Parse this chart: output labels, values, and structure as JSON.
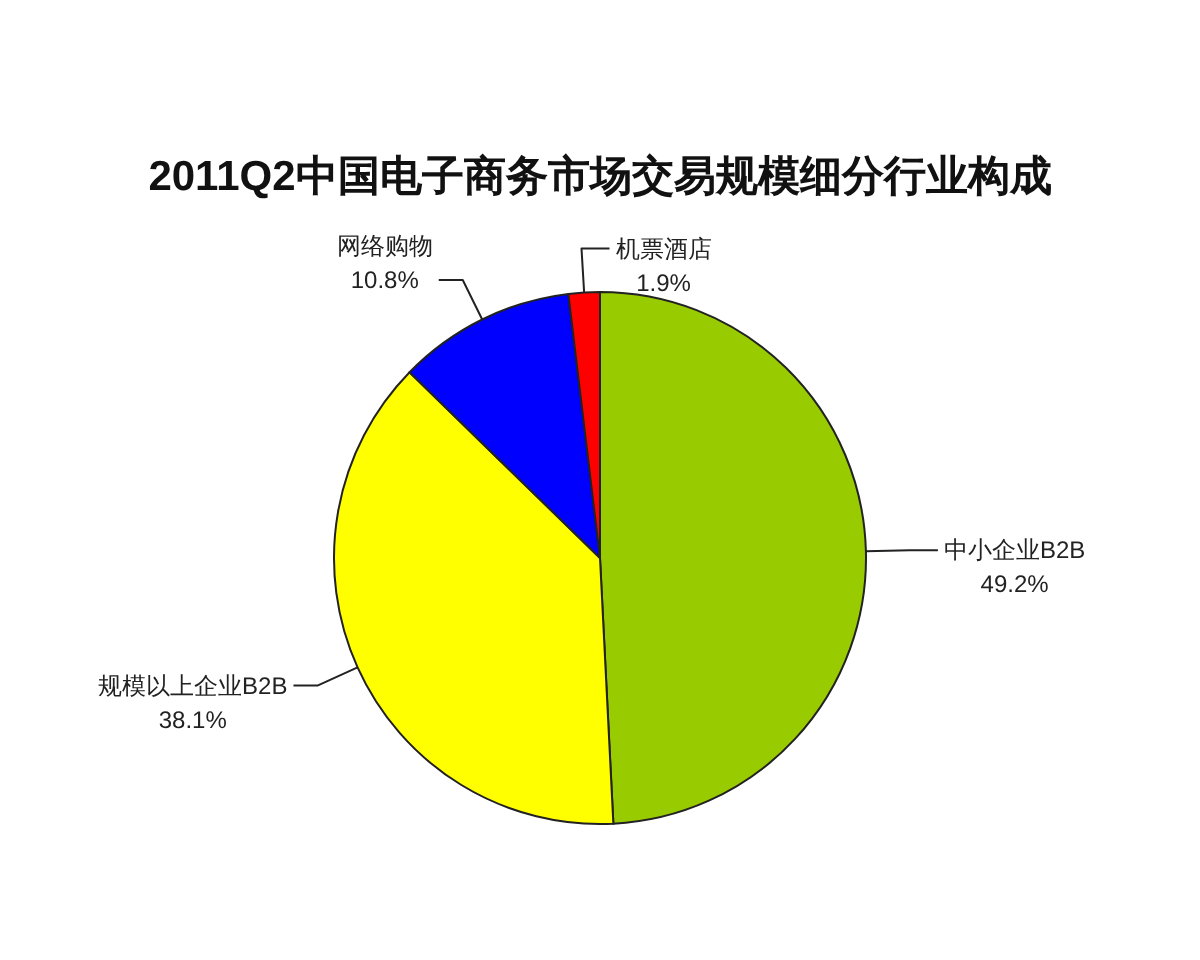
{
  "chart_data": {
    "type": "pie",
    "title": "2011Q2中国电子商务市场交易规模细分行业构成",
    "categories": [
      "中小企业B2B",
      "规模以上企业B2B",
      "网络购物",
      "机票酒店"
    ],
    "values": [
      49.2,
      38.1,
      10.8,
      1.9
    ],
    "colors": [
      "#99cc00",
      "#ffff00",
      "#0000ff",
      "#ff0000"
    ],
    "value_labels": [
      "49.2%",
      "38.1%",
      "10.8%",
      "1.9%"
    ]
  }
}
